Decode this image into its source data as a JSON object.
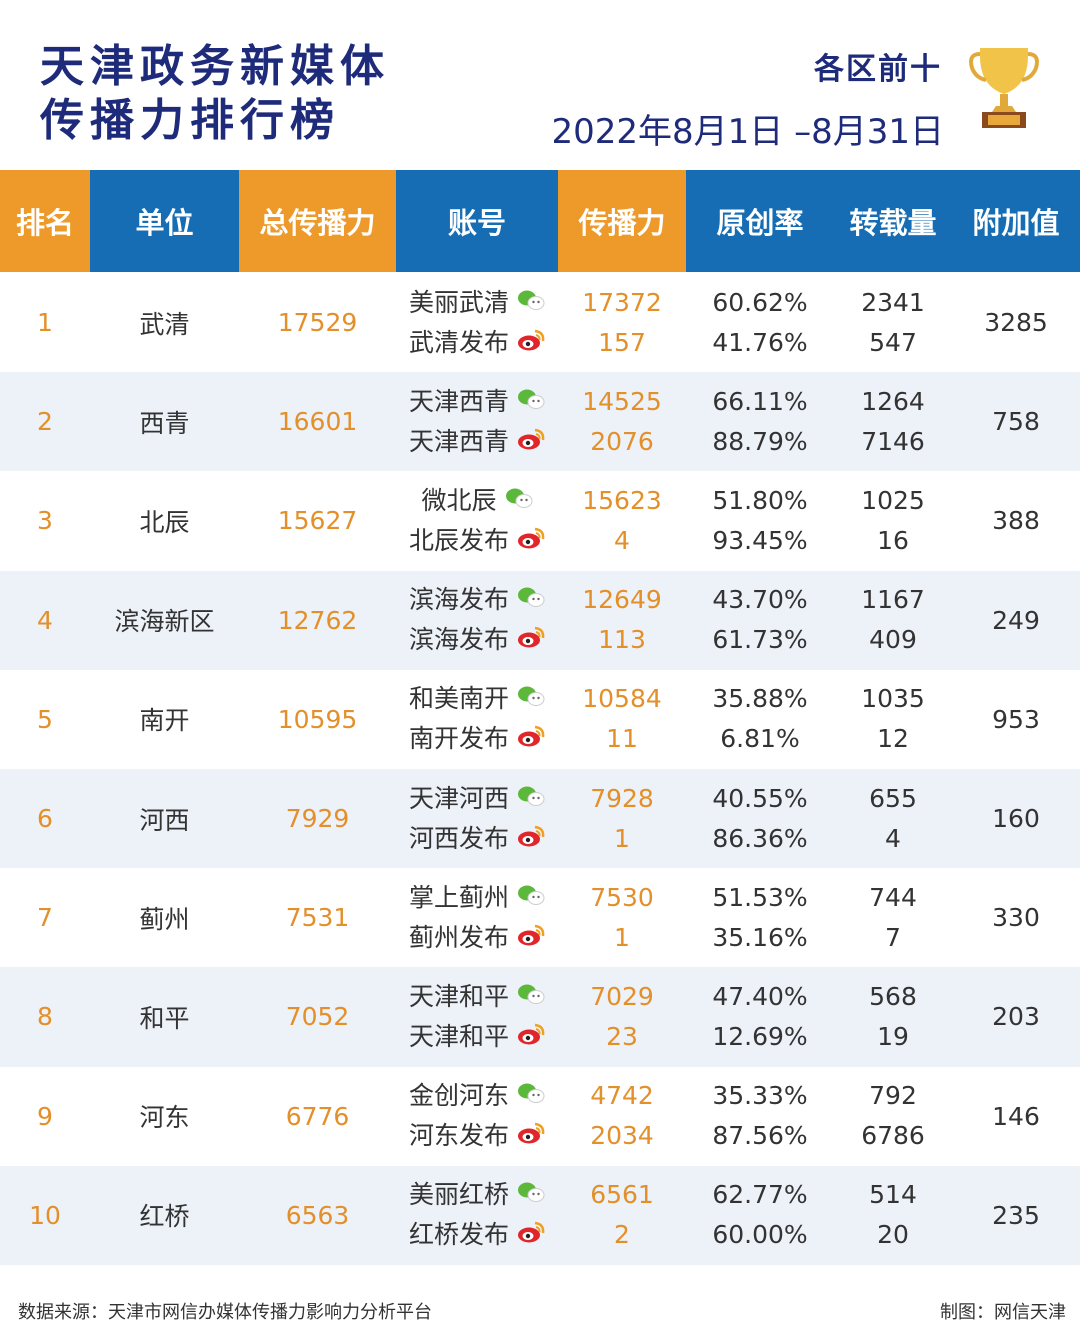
{
  "header": {
    "title_line1": "天津政务新媒体",
    "title_line2": "传播力排行榜",
    "subtitle": "各区前十",
    "date_range": "2022年8月1日 –8月31日"
  },
  "colors": {
    "orange": "#ee9a2b",
    "blue": "#176db3",
    "navy": "#1e2a7a",
    "wechat": "#5cb83a",
    "weibo": "#e0252b"
  },
  "columns": [
    "排名",
    "单位",
    "总传播力",
    "账号",
    "传播力",
    "原创率",
    "转载量",
    "附加值"
  ],
  "rows": [
    {
      "rank": "1",
      "unit": "武清",
      "total": "17529",
      "extra": "3285",
      "accounts": [
        {
          "name": "美丽武清",
          "icon": "wechat-icon",
          "power": "17372",
          "orig": "60.62%",
          "repost": "2341"
        },
        {
          "name": "武清发布",
          "icon": "weibo-icon",
          "power": "157",
          "orig": "41.76%",
          "repost": "547"
        }
      ]
    },
    {
      "rank": "2",
      "unit": "西青",
      "total": "16601",
      "extra": "758",
      "accounts": [
        {
          "name": "天津西青",
          "icon": "wechat-icon",
          "power": "14525",
          "orig": "66.11%",
          "repost": "1264"
        },
        {
          "name": "天津西青",
          "icon": "weibo-icon",
          "power": "2076",
          "orig": "88.79%",
          "repost": "7146"
        }
      ]
    },
    {
      "rank": "3",
      "unit": "北辰",
      "total": "15627",
      "extra": "388",
      "accounts": [
        {
          "name": "微北辰",
          "icon": "wechat-icon",
          "power": "15623",
          "orig": "51.80%",
          "repost": "1025"
        },
        {
          "name": "北辰发布",
          "icon": "weibo-icon",
          "power": "4",
          "orig": "93.45%",
          "repost": "16"
        }
      ]
    },
    {
      "rank": "4",
      "unit": "滨海新区",
      "total": "12762",
      "extra": "249",
      "accounts": [
        {
          "name": "滨海发布",
          "icon": "wechat-icon",
          "power": "12649",
          "orig": "43.70%",
          "repost": "1167"
        },
        {
          "name": "滨海发布",
          "icon": "weibo-icon",
          "power": "113",
          "orig": "61.73%",
          "repost": "409"
        }
      ]
    },
    {
      "rank": "5",
      "unit": "南开",
      "total": "10595",
      "extra": "953",
      "accounts": [
        {
          "name": "和美南开",
          "icon": "wechat-icon",
          "power": "10584",
          "orig": "35.88%",
          "repost": "1035"
        },
        {
          "name": "南开发布",
          "icon": "weibo-icon",
          "power": "11",
          "orig": "6.81%",
          "repost": "12"
        }
      ]
    },
    {
      "rank": "6",
      "unit": "河西",
      "total": "7929",
      "extra": "160",
      "accounts": [
        {
          "name": "天津河西",
          "icon": "wechat-icon",
          "power": "7928",
          "orig": "40.55%",
          "repost": "655"
        },
        {
          "name": "河西发布",
          "icon": "weibo-icon",
          "power": "1",
          "orig": "86.36%",
          "repost": "4"
        }
      ]
    },
    {
      "rank": "7",
      "unit": "蓟州",
      "total": "7531",
      "extra": "330",
      "accounts": [
        {
          "name": "掌上蓟州",
          "icon": "wechat-icon",
          "power": "7530",
          "orig": "51.53%",
          "repost": "744"
        },
        {
          "name": "蓟州发布",
          "icon": "weibo-icon",
          "power": "1",
          "orig": "35.16%",
          "repost": "7"
        }
      ]
    },
    {
      "rank": "8",
      "unit": "和平",
      "total": "7052",
      "extra": "203",
      "accounts": [
        {
          "name": "天津和平",
          "icon": "wechat-icon",
          "power": "7029",
          "orig": "47.40%",
          "repost": "568"
        },
        {
          "name": "天津和平",
          "icon": "weibo-icon",
          "power": "23",
          "orig": "12.69%",
          "repost": "19"
        }
      ]
    },
    {
      "rank": "9",
      "unit": "河东",
      "total": "6776",
      "extra": "146",
      "accounts": [
        {
          "name": "金创河东",
          "icon": "wechat-icon",
          "power": "4742",
          "orig": "35.33%",
          "repost": "792"
        },
        {
          "name": "河东发布",
          "icon": "weibo-icon",
          "power": "2034",
          "orig": "87.56%",
          "repost": "6786"
        }
      ]
    },
    {
      "rank": "10",
      "unit": "红桥",
      "total": "6563",
      "extra": "235",
      "accounts": [
        {
          "name": "美丽红桥",
          "icon": "wechat-icon",
          "power": "6561",
          "orig": "62.77%",
          "repost": "514"
        },
        {
          "name": "红桥发布",
          "icon": "weibo-icon",
          "power": "2",
          "orig": "60.00%",
          "repost": "20"
        }
      ]
    }
  ],
  "footer": {
    "source": "数据来源：天津市网信办媒体传播力影响力分析平台",
    "credit": "制图：网信天津"
  }
}
